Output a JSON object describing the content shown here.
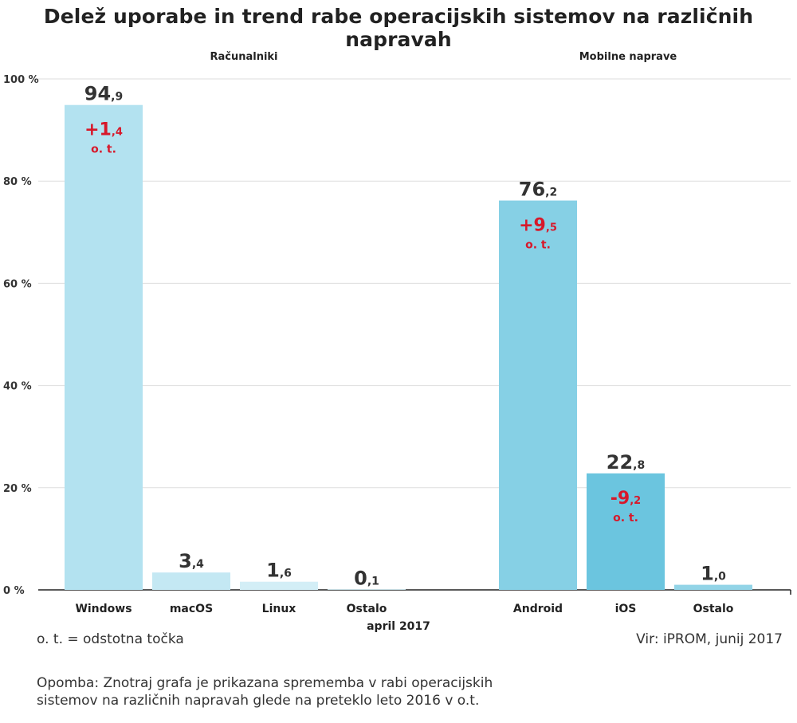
{
  "title": "Delež uporabe in trend rabe operacijskih sistemov na različnih napravah",
  "legend_note": "o. t. = odstotna točka",
  "source": "Vir: iPROM, junij 2017",
  "note_lines": [
    "Opomba: Znotraj grafa je prikazana sprememba v rabi operacijskih",
    "sistemov na različnih napravah glede na preteklo leto 2016 v o.t."
  ],
  "colors": {
    "windows": "#b3e2f0",
    "macos": "#c4e8f3",
    "linux": "#d3eef6",
    "android": "#86d0e5",
    "ios": "#6bc5df",
    "ostalo_mobile": "#92d4e7",
    "change": "#d7182a",
    "value_text": "#333333",
    "grid": "#dddddd"
  },
  "chart_data": {
    "type": "bar",
    "xlabel": "april 2017",
    "ylim": [
      0,
      100
    ],
    "y_ticks": [
      "0 %",
      "20 %",
      "40 %",
      "60 %",
      "80 %",
      "100 %"
    ],
    "y_tick_values": [
      0,
      20,
      40,
      60,
      80,
      100
    ],
    "groups": [
      {
        "name": "Računalniki",
        "bars": [
          {
            "label": "Windows",
            "value": 94.9,
            "value_int": "94",
            "value_dec": ",9",
            "change_int": "+1",
            "change_dec": ",4",
            "change_unit": "o. t.",
            "color_key": "windows"
          },
          {
            "label": "macOS",
            "value": 3.4,
            "value_int": "3",
            "value_dec": ",4",
            "color_key": "macos"
          },
          {
            "label": "Linux",
            "value": 1.6,
            "value_int": "1",
            "value_dec": ",6",
            "color_key": "linux"
          },
          {
            "label": "Ostalo",
            "value": 0.1,
            "value_int": "0",
            "value_dec": ",1",
            "color_key": "linux"
          }
        ]
      },
      {
        "name": "Mobilne naprave",
        "bars": [
          {
            "label": "Android",
            "value": 76.2,
            "value_int": "76",
            "value_dec": ",2",
            "change_int": "+9",
            "change_dec": ",5",
            "change_unit": "o. t.",
            "color_key": "android"
          },
          {
            "label": "iOS",
            "value": 22.8,
            "value_int": "22",
            "value_dec": ",8",
            "change_int": "-9",
            "change_dec": ",2",
            "change_unit": "o. t.",
            "color_key": "ios"
          },
          {
            "label": "Ostalo",
            "value": 1.0,
            "value_int": "1",
            "value_dec": ",0",
            "color_key": "ostalo_mobile"
          }
        ]
      }
    ]
  }
}
